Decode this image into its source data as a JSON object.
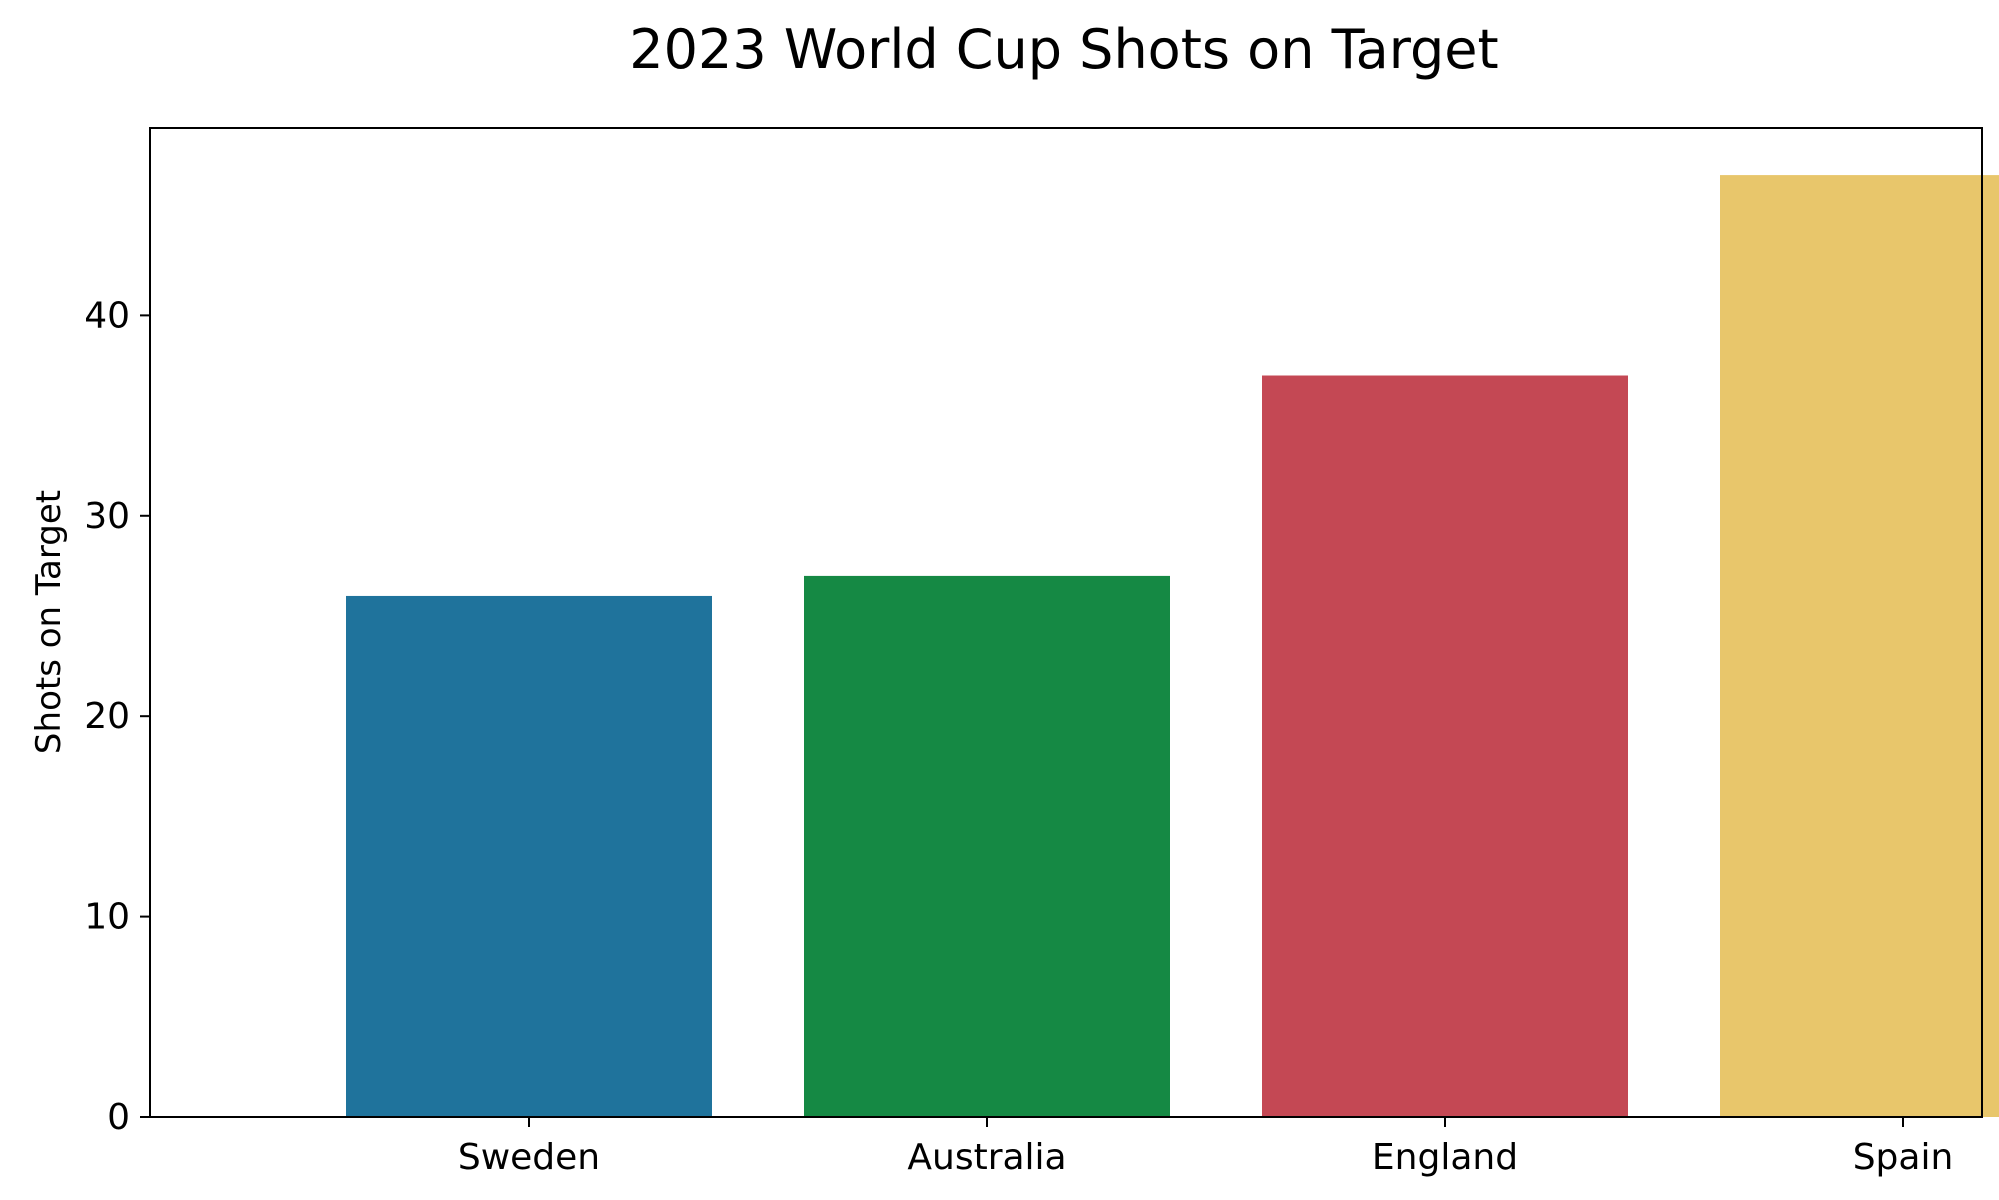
{
  "chart_data": {
    "type": "bar",
    "title": "2023 World Cup Shots on Target",
    "xlabel": "",
    "ylabel": "Shots on Target",
    "categories": [
      "Sweden",
      "Australia",
      "England",
      "Spain"
    ],
    "values": [
      26,
      27,
      37,
      47
    ],
    "colors": [
      "#1f739c",
      "#158944",
      "#c44854",
      "#e8c66b"
    ],
    "ylim": [
      0,
      49.35
    ],
    "yticks": [
      0,
      10,
      20,
      30,
      40
    ],
    "grid": false,
    "legend": "none"
  }
}
